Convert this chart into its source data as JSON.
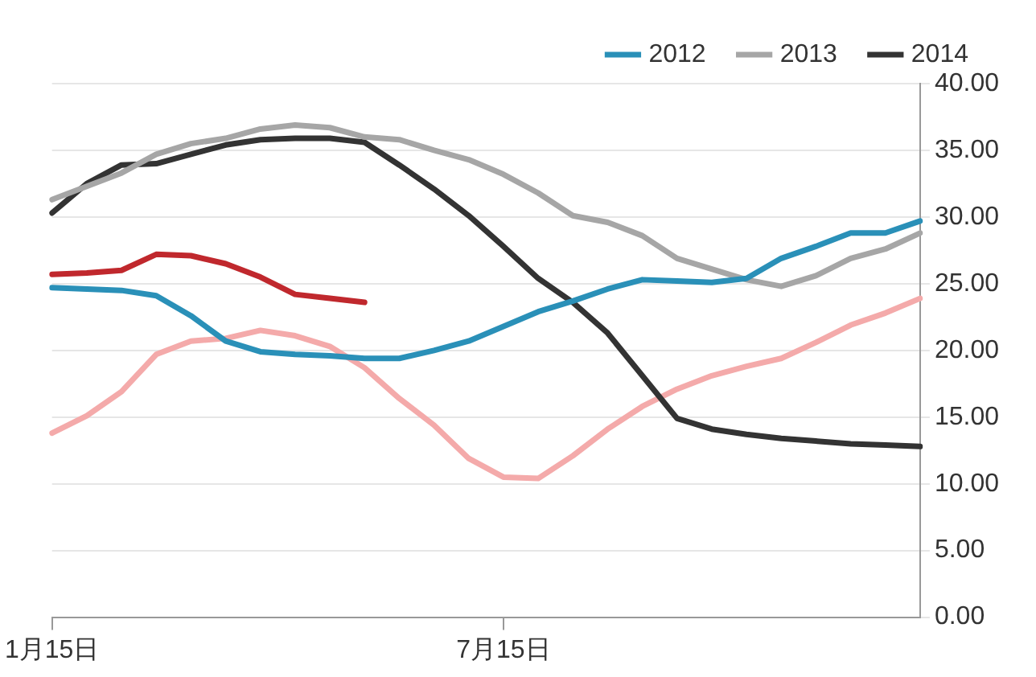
{
  "chart_data": {
    "type": "line",
    "legend": "top",
    "grid": "y",
    "marker": "none",
    "line_style": "solid",
    "categories": [
      "1月15日",
      null,
      null,
      null,
      null,
      null,
      null,
      null,
      null,
      null,
      null,
      null,
      null,
      "7月15日",
      null,
      null,
      null,
      null,
      null,
      null,
      null,
      null,
      null,
      null,
      null,
      null
    ],
    "ylim": [
      0,
      40
    ],
    "yticks": [
      {
        "value": 0,
        "label": "0.00"
      },
      {
        "value": 5,
        "label": "5.00"
      },
      {
        "value": 10,
        "label": "10.00"
      },
      {
        "value": 15,
        "label": "15.00"
      },
      {
        "value": 20,
        "label": "20.00"
      },
      {
        "value": 25,
        "label": "25.00"
      },
      {
        "value": 30,
        "label": "30.00"
      },
      {
        "value": 35,
        "label": "35.00"
      },
      {
        "value": 40,
        "label": "40.00"
      }
    ],
    "series": [
      {
        "name": "2012",
        "color": "#2a90b8",
        "values": [
          24.7,
          24.6,
          24.5,
          24.1,
          22.6,
          20.7,
          19.9,
          19.7,
          19.6,
          19.4,
          19.4,
          20.0,
          20.7,
          21.8,
          22.9,
          23.7,
          24.6,
          25.3,
          25.2,
          25.1,
          25.4,
          26.9,
          27.8,
          28.8,
          28.8,
          29.7
        ]
      },
      {
        "name": "2013",
        "color": "#a6a6a6",
        "values": [
          31.3,
          32.3,
          33.3,
          34.7,
          35.5,
          35.9,
          36.6,
          36.9,
          36.7,
          36.0,
          35.8,
          35.0,
          34.3,
          33.2,
          31.8,
          30.1,
          29.6,
          28.6,
          26.9,
          26.1,
          25.3,
          24.8,
          25.6,
          26.9,
          27.6,
          28.8
        ]
      },
      {
        "name": "2014",
        "color": "#333333",
        "values": [
          30.3,
          32.5,
          33.9,
          34.0,
          34.7,
          35.4,
          35.8,
          35.9,
          35.9,
          35.6,
          33.9,
          32.1,
          30.1,
          27.8,
          25.4,
          23.6,
          21.3,
          18.1,
          14.9,
          14.1,
          13.7,
          13.4,
          13.2,
          13.0,
          12.9,
          12.8
        ]
      },
      {
        "color": "#c0282d",
        "values": [
          25.7,
          25.8,
          26.0,
          27.2,
          27.1,
          26.5,
          25.5,
          24.2,
          23.9,
          23.6,
          null,
          null,
          null,
          null,
          null,
          null,
          null,
          null,
          null,
          null,
          null,
          null,
          null,
          null,
          null,
          null
        ]
      },
      {
        "color": "#f4aaaa",
        "values": [
          13.8,
          15.1,
          16.9,
          19.7,
          20.7,
          20.9,
          21.5,
          21.1,
          20.3,
          18.7,
          16.4,
          14.4,
          11.9,
          10.5,
          10.4,
          12.1,
          14.1,
          15.8,
          17.1,
          18.1,
          18.8,
          19.4,
          20.6,
          21.9,
          22.8,
          23.9
        ]
      }
    ]
  }
}
